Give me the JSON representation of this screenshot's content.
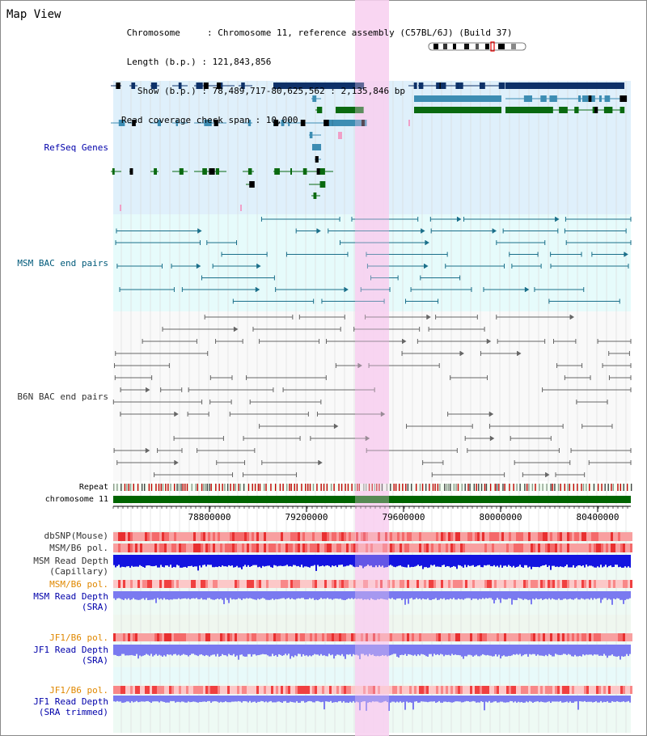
{
  "page": {
    "title": "Map View"
  },
  "info": {
    "chromosome_line": " Chromosome     : Chromosome 11, reference assembly (C57BL/6J) (Build 37)",
    "length_line": " Length (b.p.) : 121,843,856",
    "show_line": "   Show (b.p.) : 78,489,717-80,625,562 : 2,135,846 bp",
    "span_line": "Read coverage check span : 10,000"
  },
  "tracks": {
    "refseq": "RefSeq Genes",
    "msm_bac": "MSM BAC end pairs",
    "b6n_bac": "B6N BAC end pairs",
    "repeat": "Repeat",
    "chromosome": "chromosome 11",
    "dbsnp": "dbSNP(Mouse)",
    "msm_b6_pol_1": "MSM/B6 pol.",
    "msm_depth_cap_1": "MSM Read Depth",
    "msm_depth_cap_2": "(Capillary)",
    "msm_b6_pol_2": "MSM/B6 pol.",
    "msm_depth_sra_1": "MSM Read Depth",
    "msm_depth_sra_2": "(SRA)",
    "jf1_b6_pol_1": "JF1/B6 pol.",
    "jf1_depth_sra_1": "JF1 Read Depth",
    "jf1_depth_sra_2": "(SRA)",
    "jf1_b6_pol_2": "JF1/B6 pol.",
    "jf1_depth_trim_1": "JF1 Read Depth",
    "jf1_depth_trim_2": "(SRA trimmed)"
  },
  "axis": {
    "ticks": [
      "78800000",
      "79200000",
      "79600000",
      "80000000",
      "80400000"
    ]
  },
  "colors": {
    "refseq_bg": "#dff0fb",
    "msm_bg": "#e6fbfb",
    "b6n_bg": "#f9f9f9",
    "highlight": "#f8d0f0",
    "chromosome_bar": "#006400",
    "gene_dark": "#0d3168",
    "gene_mid": "#3d8db3",
    "gene_green": "#0a6a10",
    "depth_blue": "#1414e0",
    "depth_light": "#7a7af0"
  }
}
